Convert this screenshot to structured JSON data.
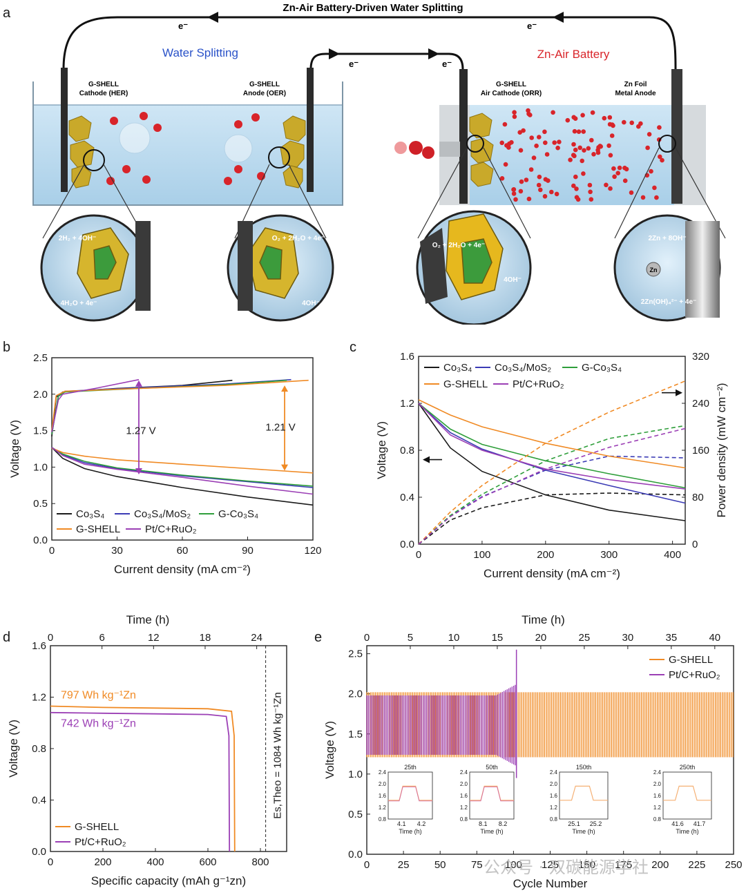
{
  "figure": {
    "panel_labels": [
      "a",
      "b",
      "c",
      "d",
      "e"
    ]
  },
  "panel_a": {
    "title": "Zn-Air  Battery-Driven Water Splitting",
    "water_splitting_label": "Water Splitting",
    "zn_air_label": "Zn-Air Battery",
    "electron_label": "e⁻",
    "cathode_her_line1": "G-SHELL",
    "cathode_her_line2": "Cathode (HER)",
    "anode_oer_line1": "G-SHELL",
    "anode_oer_line2": "Anode (OER)",
    "air_cathode_line1": "G-SHELL",
    "air_cathode_line2": "Air Cathode (ORR)",
    "zn_anode_line1": "Zn Foil",
    "zn_anode_line2": "Metal Anode",
    "her_top": "2H₂ + 4OH⁻",
    "her_bottom": "4H₂O + 4e⁻",
    "oer_top": "O₂ + 2H₂O + 4e⁻",
    "oer_bottom": "4OH⁻",
    "orr_top": "O₂ + 2H₂O + 4e⁻",
    "orr_bottom": "4OH⁻",
    "zn_top": "2Zn + 8OH⁻",
    "zn_mid": "Zn",
    "zn_bottom": "2Zn(OH)₄²⁻ + 4e⁻"
  },
  "colors": {
    "co3s4": "#1a1a1a",
    "co3s4_mos2": "#3b3bb5",
    "g_co3s4": "#2e9e3a",
    "g_shell": "#f08a24",
    "ptc": "#9b3fb5",
    "water_blue": "#2a52c8",
    "zn_red": "#d9262b"
  },
  "chart_data": [
    {
      "panel": "b",
      "type": "line",
      "xlabel": "Current density (mA cm⁻²)",
      "ylabel": "Voltage (V)",
      "xlim": [
        0,
        120
      ],
      "ylim": [
        0,
        2.5
      ],
      "xticks": [
        "0",
        "30",
        "60",
        "90",
        "120"
      ],
      "yticks": [
        "0.0",
        "0.5",
        "1.0",
        "1.5",
        "2.0",
        "2.5"
      ],
      "annotations": [
        "1.27 V",
        "1.21 V"
      ],
      "series": [
        {
          "name": "Co₃S₄",
          "key": "co3s4",
          "discharge": [
            [
              0,
              1.27
            ],
            [
              5,
              1.12
            ],
            [
              15,
              0.98
            ],
            [
              30,
              0.87
            ],
            [
              60,
              0.72
            ],
            [
              90,
              0.59
            ],
            [
              120,
              0.48
            ]
          ],
          "charge": [
            [
              0,
              1.42
            ],
            [
              2,
              1.96
            ],
            [
              5,
              2.03
            ],
            [
              30,
              2.08
            ],
            [
              60,
              2.12
            ],
            [
              83,
              2.19
            ]
          ]
        },
        {
          "name": "Co₃S₄/MoS₂",
          "key": "co3s4_mos2",
          "discharge": [
            [
              0,
              1.27
            ],
            [
              5,
              1.17
            ],
            [
              15,
              1.06
            ],
            [
              30,
              0.98
            ],
            [
              60,
              0.88
            ],
            [
              90,
              0.8
            ],
            [
              120,
              0.72
            ]
          ],
          "charge": [
            [
              0,
              1.45
            ],
            [
              3,
              1.98
            ],
            [
              6,
              2.04
            ],
            [
              40,
              2.09
            ],
            [
              80,
              2.14
            ],
            [
              110,
              2.2
            ]
          ]
        },
        {
          "name": "G-Co₃S₄",
          "key": "g_co3s4",
          "discharge": [
            [
              0,
              1.27
            ],
            [
              5,
              1.18
            ],
            [
              15,
              1.08
            ],
            [
              30,
              0.99
            ],
            [
              60,
              0.89
            ],
            [
              90,
              0.81
            ],
            [
              120,
              0.74
            ]
          ],
          "charge": [
            [
              0,
              1.45
            ],
            [
              3,
              1.97
            ],
            [
              6,
              2.03
            ],
            [
              40,
              2.08
            ],
            [
              80,
              2.13
            ],
            [
              108,
              2.19
            ]
          ]
        },
        {
          "name": "G-SHELL",
          "key": "g_shell",
          "discharge": [
            [
              0,
              1.26
            ],
            [
              5,
              1.2
            ],
            [
              15,
              1.15
            ],
            [
              30,
              1.1
            ],
            [
              60,
              1.04
            ],
            [
              90,
              0.98
            ],
            [
              120,
              0.92
            ]
          ],
          "charge": [
            [
              0,
              1.5
            ],
            [
              2,
              1.98
            ],
            [
              6,
              2.04
            ],
            [
              40,
              2.08
            ],
            [
              80,
              2.12
            ],
            [
              118,
              2.19
            ]
          ]
        },
        {
          "name": "Pt/C+RuO₂",
          "key": "ptc",
          "discharge": [
            [
              0,
              1.27
            ],
            [
              5,
              1.16
            ],
            [
              15,
              1.04
            ],
            [
              30,
              0.97
            ],
            [
              60,
              0.86
            ],
            [
              90,
              0.74
            ],
            [
              120,
              0.63
            ]
          ],
          "charge": [
            [
              0,
              1.48
            ],
            [
              3,
              1.92
            ],
            [
              5,
              2.0
            ],
            [
              20,
              2.08
            ],
            [
              40,
              2.2
            ]
          ]
        }
      ]
    },
    {
      "panel": "c",
      "type": "line",
      "xlabel": "Current density (mA cm⁻²)",
      "ylabel": "Voltage (V)",
      "y2label": "Power density (mW cm⁻²)",
      "xlim": [
        0,
        420
      ],
      "ylim": [
        0,
        1.6
      ],
      "y2lim": [
        0,
        320
      ],
      "xticks": [
        "0",
        "100",
        "200",
        "300",
        "400"
      ],
      "yticks": [
        "0.0",
        "0.4",
        "0.8",
        "1.2",
        "1.6"
      ],
      "y2ticks": [
        "0",
        "80",
        "160",
        "240",
        "320"
      ],
      "series": [
        {
          "name": "Co₃S₄",
          "key": "co3s4",
          "voltage": [
            [
              0,
              1.2
            ],
            [
              50,
              0.82
            ],
            [
              100,
              0.62
            ],
            [
              200,
              0.42
            ],
            [
              300,
              0.29
            ],
            [
              420,
              0.2
            ]
          ],
          "power": [
            [
              0,
              0
            ],
            [
              50,
              41
            ],
            [
              100,
              62
            ],
            [
              200,
              84
            ],
            [
              300,
              87
            ],
            [
              420,
              84
            ]
          ]
        },
        {
          "name": "Co₃S₄/MoS₂",
          "key": "co3s4_mos2",
          "voltage": [
            [
              0,
              1.2
            ],
            [
              50,
              0.95
            ],
            [
              100,
              0.81
            ],
            [
              200,
              0.63
            ],
            [
              300,
              0.5
            ],
            [
              420,
              0.35
            ]
          ],
          "power": [
            [
              0,
              0
            ],
            [
              50,
              48
            ],
            [
              100,
              81
            ],
            [
              200,
              126
            ],
            [
              300,
              150
            ],
            [
              420,
              147
            ]
          ]
        },
        {
          "name": "G-Co₃S₄",
          "key": "g_co3s4",
          "voltage": [
            [
              0,
              1.2
            ],
            [
              50,
              0.98
            ],
            [
              100,
              0.85
            ],
            [
              200,
              0.71
            ],
            [
              300,
              0.6
            ],
            [
              420,
              0.48
            ]
          ],
          "power": [
            [
              0,
              0
            ],
            [
              50,
              49
            ],
            [
              100,
              85
            ],
            [
              200,
              142
            ],
            [
              300,
              180
            ],
            [
              420,
              202
            ]
          ]
        },
        {
          "name": "G-SHELL",
          "key": "g_shell",
          "voltage": [
            [
              0,
              1.23
            ],
            [
              50,
              1.1
            ],
            [
              100,
              1.0
            ],
            [
              200,
              0.86
            ],
            [
              300,
              0.75
            ],
            [
              420,
              0.65
            ]
          ],
          "power": [
            [
              0,
              0
            ],
            [
              50,
              55
            ],
            [
              100,
              100
            ],
            [
              200,
              172
            ],
            [
              300,
              225
            ],
            [
              420,
              278
            ]
          ]
        },
        {
          "name": "Pt/C+RuO₂",
          "key": "ptc",
          "voltage": [
            [
              0,
              1.2
            ],
            [
              50,
              0.93
            ],
            [
              100,
              0.8
            ],
            [
              200,
              0.64
            ],
            [
              300,
              0.55
            ],
            [
              420,
              0.47
            ]
          ],
          "power": [
            [
              0,
              0
            ],
            [
              50,
              47
            ],
            [
              100,
              80
            ],
            [
              200,
              128
            ],
            [
              300,
              165
            ],
            [
              420,
              197
            ]
          ]
        }
      ]
    },
    {
      "panel": "d",
      "type": "line",
      "xlabel": "Specific capacity (mAh g⁻¹zn)",
      "ylabel": "Voltage (V)",
      "top_xlabel": "Time (h)",
      "xlim": [
        0,
        900
      ],
      "ylim": [
        0,
        1.6
      ],
      "xticks": [
        "0",
        "200",
        "400",
        "600",
        "800"
      ],
      "yticks": [
        "0.0",
        "0.4",
        "0.8",
        "1.2",
        "1.6"
      ],
      "top_xticks": [
        "0",
        "6",
        "12",
        "18",
        "24"
      ],
      "theo_line_x": 820,
      "theo_label": "Es,Theo = 1084 Wh kg⁻¹Zn",
      "annotations": [
        "797 Wh kg⁻¹Zn",
        "742 Wh kg⁻¹Zn"
      ],
      "series": [
        {
          "name": "G-SHELL",
          "key": "g_shell",
          "points": [
            [
              0,
              1.13
            ],
            [
              200,
              1.12
            ],
            [
              400,
              1.115
            ],
            [
              600,
              1.11
            ],
            [
              690,
              1.09
            ],
            [
              700,
              0.9
            ],
            [
              702,
              0
            ]
          ]
        },
        {
          "name": "Pt/C+RuO₂",
          "key": "ptc",
          "points": [
            [
              0,
              1.08
            ],
            [
              200,
              1.075
            ],
            [
              400,
              1.07
            ],
            [
              600,
              1.065
            ],
            [
              670,
              1.05
            ],
            [
              680,
              0.9
            ],
            [
              682,
              0
            ]
          ]
        }
      ]
    },
    {
      "panel": "e",
      "type": "line",
      "xlabel": "Cycle Number",
      "ylabel": "Voltage (V)",
      "top_xlabel": "Time (h)",
      "xlim": [
        0,
        250
      ],
      "ylim": [
        0,
        2.6
      ],
      "xticks": [
        "0",
        "25",
        "50",
        "75",
        "100",
        "125",
        "150",
        "175",
        "200",
        "225",
        "250"
      ],
      "yticks": [
        "0.0",
        "0.5",
        "1.0",
        "1.5",
        "2.0",
        "2.5"
      ],
      "top_xticks": [
        "0",
        "5",
        "10",
        "15",
        "20",
        "25",
        "30",
        "35",
        "40"
      ],
      "series": [
        {
          "name": "G-SHELL",
          "key": "g_shell",
          "charge_v": 2.02,
          "discharge_v": 1.21,
          "cycles": [
            0,
            250
          ]
        },
        {
          "name": "Pt/C+RuO₂",
          "key": "ptc",
          "charge_v": 1.98,
          "discharge_v": 1.24,
          "cycles": [
            0,
            102
          ]
        }
      ],
      "insets": [
        {
          "title": "25th",
          "xticks": [
            "4.1",
            "4.2"
          ],
          "yticks": [
            "0.8",
            "1.2",
            "1.6",
            "2.0",
            "2.4"
          ],
          "xlabel": "Time (h)"
        },
        {
          "title": "50th",
          "xticks": [
            "8.1",
            "8.2"
          ],
          "yticks": [
            "0.8",
            "1.2",
            "1.6",
            "2.0",
            "2.4"
          ],
          "xlabel": "Time (h)"
        },
        {
          "title": "150th",
          "xticks": [
            "25.1",
            "25.2"
          ],
          "yticks": [
            "0.8",
            "1.2",
            "1.6",
            "2.0",
            "2.4"
          ],
          "xlabel": "Time (h)"
        },
        {
          "title": "250th",
          "xticks": [
            "41.6",
            "41.7"
          ],
          "yticks": [
            "0.8",
            "1.2",
            "1.6",
            "2.0",
            "2.4"
          ],
          "xlabel": "Time (h)"
        }
      ]
    }
  ],
  "watermark": "公众号 · 双碳能源学社"
}
